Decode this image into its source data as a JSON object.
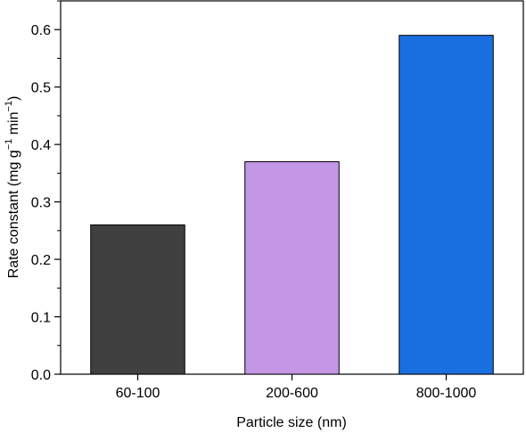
{
  "chart_data": {
    "type": "bar",
    "categories": [
      "60-100",
      "200-600",
      "800-1000"
    ],
    "values": [
      0.26,
      0.37,
      0.59
    ],
    "bar_colors": [
      "#404040",
      "#c496e6",
      "#1a6fe0"
    ],
    "xlabel": "Particle size (nm)",
    "ylabel": {
      "prefix": "Rate constant (mg g",
      "sup1": "−1",
      "middle": " min",
      "sup2": "−1",
      "suffix": ")"
    },
    "ylim": [
      0.0,
      0.65
    ],
    "yticks": [
      "0.0",
      "0.1",
      "0.2",
      "0.3",
      "0.4",
      "0.5",
      "0.6"
    ],
    "ytick_values": [
      0.0,
      0.1,
      0.2,
      0.3,
      0.4,
      0.5,
      0.6
    ],
    "grid": false,
    "legend": "none"
  }
}
